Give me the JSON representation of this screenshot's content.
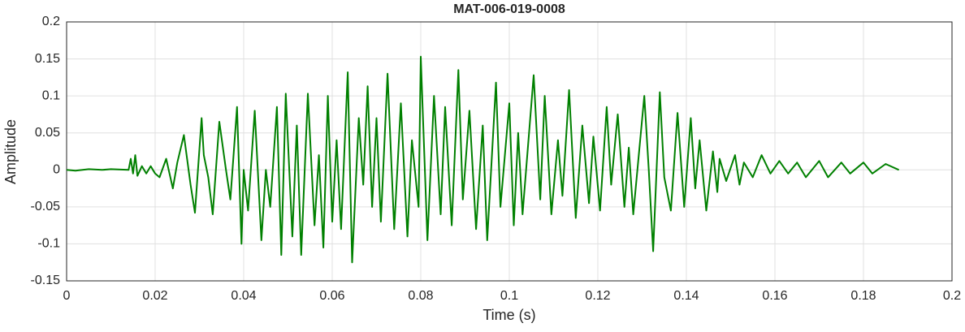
{
  "chart_data": {
    "type": "line",
    "title": "MAT-006-019-0008",
    "xlabel": "Time (s)",
    "ylabel": "Amplitude",
    "x": [
      0,
      0.002,
      0.005,
      0.008,
      0.01,
      0.014,
      0.0145,
      0.015,
      0.0155,
      0.016,
      0.017,
      0.018,
      0.019,
      0.02,
      0.021,
      0.0225,
      0.024,
      0.025,
      0.0265,
      0.028,
      0.029,
      0.0305,
      0.031,
      0.032,
      0.033,
      0.0345,
      0.036,
      0.037,
      0.0385,
      0.0395,
      0.04,
      0.041,
      0.0425,
      0.044,
      0.045,
      0.046,
      0.0475,
      0.0485,
      0.0495,
      0.051,
      0.052,
      0.053,
      0.0545,
      0.056,
      0.057,
      0.058,
      0.059,
      0.06,
      0.061,
      0.062,
      0.0635,
      0.0645,
      0.066,
      0.067,
      0.068,
      0.069,
      0.07,
      0.071,
      0.0725,
      0.074,
      0.0755,
      0.077,
      0.078,
      0.0795,
      0.08,
      0.0815,
      0.083,
      0.0845,
      0.0855,
      0.087,
      0.0885,
      0.0895,
      0.091,
      0.0925,
      0.094,
      0.095,
      0.097,
      0.098,
      0.1,
      0.101,
      0.102,
      0.103,
      0.1055,
      0.107,
      0.108,
      0.1095,
      0.111,
      0.112,
      0.1135,
      0.115,
      0.1165,
      0.118,
      0.119,
      0.1205,
      0.122,
      0.123,
      0.1245,
      0.126,
      0.127,
      0.128,
      0.1305,
      0.1315,
      0.1325,
      0.134,
      0.135,
      0.1365,
      0.138,
      0.1395,
      0.141,
      0.142,
      0.143,
      0.1445,
      0.146,
      0.147,
      0.1475,
      0.149,
      0.151,
      0.152,
      0.153,
      0.155,
      0.157,
      0.159,
      0.161,
      0.163,
      0.165,
      0.167,
      0.17,
      0.172,
      0.175,
      0.177,
      0.18,
      0.182,
      0.185,
      0.188
    ],
    "series": [
      {
        "color": "#008000",
        "values": [
          0,
          -0.001,
          0.001,
          0,
          0.001,
          0,
          0.015,
          -0.005,
          0.02,
          -0.008,
          0.005,
          -0.005,
          0.005,
          -0.005,
          -0.01,
          0.015,
          -0.025,
          0.01,
          0.047,
          -0.02,
          -0.058,
          0.07,
          0.02,
          -0.01,
          -0.06,
          0.065,
          0,
          -0.04,
          0.085,
          -0.1,
          0,
          -0.055,
          0.08,
          -0.095,
          0,
          -0.05,
          0.085,
          -0.115,
          0.103,
          -0.09,
          0.06,
          -0.115,
          0.103,
          -0.075,
          0.02,
          -0.105,
          0.1,
          -0.07,
          0.04,
          -0.08,
          0.132,
          -0.125,
          0.07,
          -0.02,
          0.113,
          -0.05,
          0.07,
          -0.07,
          0.13,
          -0.08,
          0.09,
          -0.09,
          0.04,
          -0.05,
          0.153,
          -0.095,
          0.1,
          -0.06,
          0.085,
          -0.075,
          0.135,
          -0.04,
          0.08,
          -0.08,
          0.06,
          -0.095,
          0.118,
          -0.05,
          0.09,
          -0.075,
          0.05,
          -0.06,
          0.128,
          -0.04,
          0.1,
          -0.06,
          0.04,
          -0.035,
          0.108,
          -0.065,
          0.06,
          -0.045,
          0.045,
          -0.055,
          0.085,
          -0.02,
          0.075,
          -0.05,
          0.03,
          -0.06,
          0.1,
          0,
          -0.11,
          0.105,
          -0.01,
          -0.055,
          0.077,
          -0.05,
          0.07,
          -0.025,
          0.04,
          -0.055,
          0.025,
          -0.03,
          0.015,
          -0.015,
          0.02,
          -0.02,
          0.01,
          -0.01,
          0.02,
          -0.005,
          0.012,
          -0.005,
          0.01,
          -0.01,
          0.012,
          -0.01,
          0.01,
          -0.005,
          0.01,
          -0.005,
          0.008,
          0
        ]
      }
    ],
    "xlim": [
      0,
      0.2
    ],
    "ylim": [
      -0.15,
      0.2
    ],
    "xticks": [
      0,
      0.02,
      0.04,
      0.06,
      0.08,
      0.1,
      0.12,
      0.14,
      0.16,
      0.18,
      0.2
    ],
    "yticks": [
      -0.15,
      -0.1,
      -0.05,
      0,
      0.05,
      0.1,
      0.15,
      0.2
    ],
    "grid": true
  }
}
